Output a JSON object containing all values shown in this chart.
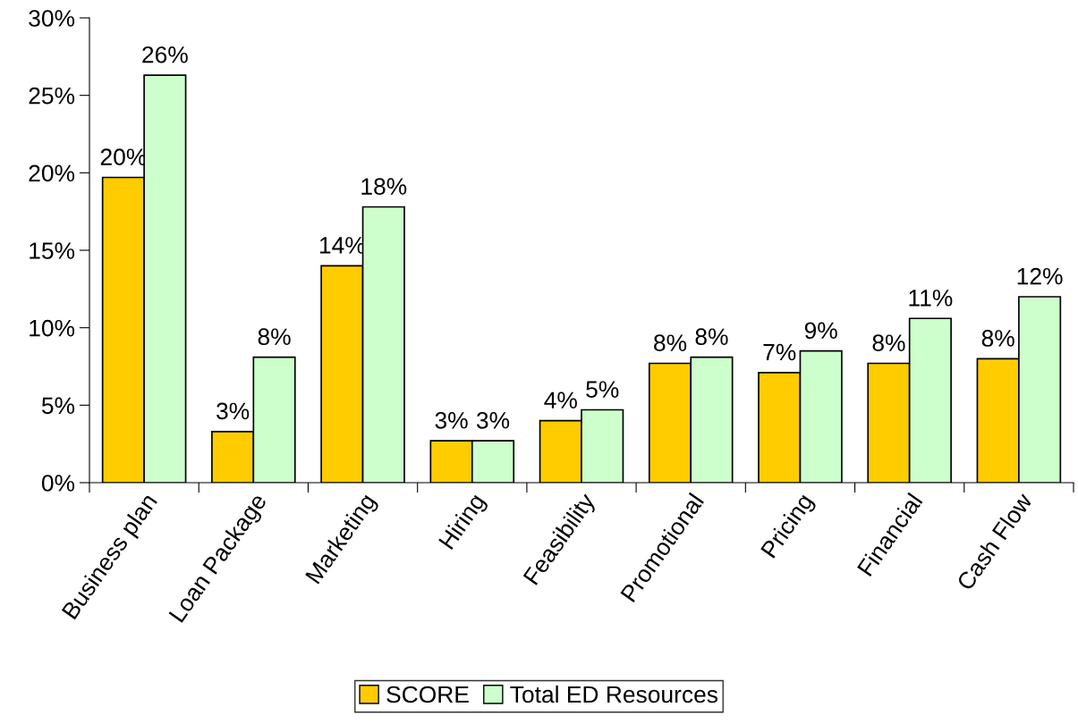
{
  "chart_data": {
    "type": "bar",
    "categories": [
      "Business plan",
      "Loan Package",
      "Marketing",
      "Hiring",
      "Feasibility",
      "Promotional",
      "Pricing",
      "Financial",
      "Cash Flow"
    ],
    "series": [
      {
        "name": "SCORE",
        "color": "#ffcc00",
        "values": [
          19.7,
          3.3,
          14.0,
          2.7,
          4.0,
          7.7,
          7.1,
          7.7,
          8.0
        ],
        "value_labels": [
          "20%",
          "3%",
          "14%",
          "3%",
          "4%",
          "8%",
          "7%",
          "8%",
          "8%"
        ]
      },
      {
        "name": "Total ED Resources",
        "color": "#ccffcc",
        "values": [
          26.3,
          8.1,
          17.8,
          2.7,
          4.7,
          8.1,
          8.5,
          10.6,
          12.0
        ],
        "value_labels": [
          "26%",
          "8%",
          "18%",
          "3%",
          "5%",
          "8%",
          "9%",
          "11%",
          "12%"
        ]
      }
    ],
    "ylim": [
      0,
      30
    ],
    "yticks": [
      {
        "value": 0,
        "label": "0%"
      },
      {
        "value": 5,
        "label": "5%"
      },
      {
        "value": 10,
        "label": "10%"
      },
      {
        "value": 15,
        "label": "15%"
      },
      {
        "value": 20,
        "label": "20%"
      },
      {
        "value": 25,
        "label": "25%"
      },
      {
        "value": 30,
        "label": "30%"
      }
    ],
    "grid": false,
    "legend": "bottom"
  }
}
